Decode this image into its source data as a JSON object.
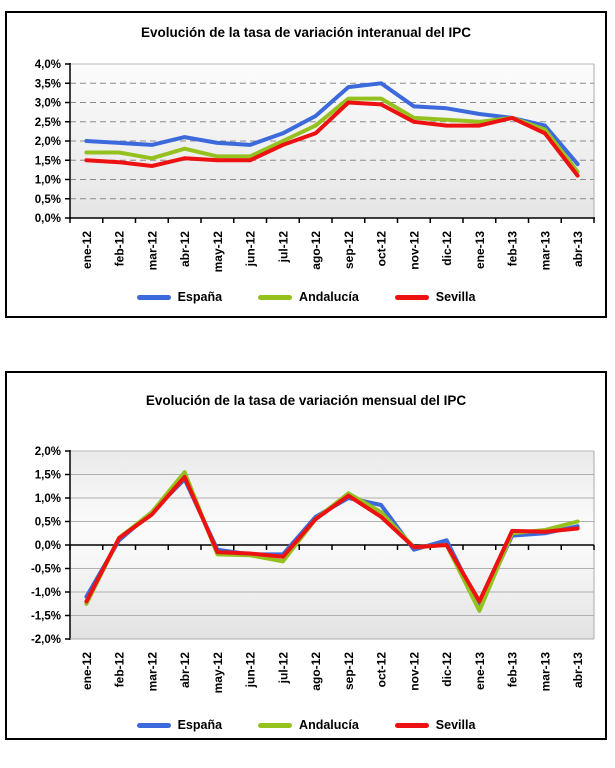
{
  "page": {
    "background": "#FFFFFF"
  },
  "chart_data": [
    {
      "type": "line",
      "title": "Evolución de la tasa de variación interanual del IPC",
      "categories": [
        "ene-12",
        "feb-12",
        "mar-12",
        "abr-12",
        "may-12",
        "jun-12",
        "jul-12",
        "ago-12",
        "sep-12",
        "oct-12",
        "nov-12",
        "dic-12",
        "ene-13",
        "feb-13",
        "mar-13",
        "abr-13"
      ],
      "series": [
        {
          "name": "España",
          "color": "#3C69DC",
          "values": [
            2.0,
            1.95,
            1.9,
            2.1,
            1.95,
            1.9,
            2.2,
            2.65,
            3.4,
            3.5,
            2.9,
            2.85,
            2.7,
            2.6,
            2.4,
            1.4
          ]
        },
        {
          "name": "Andalucía",
          "color": "#95C11F",
          "values": [
            1.7,
            1.7,
            1.55,
            1.8,
            1.6,
            1.6,
            2.0,
            2.4,
            3.1,
            3.1,
            2.6,
            2.55,
            2.5,
            2.6,
            2.3,
            1.2
          ]
        },
        {
          "name": "Sevilla",
          "color": "#EE1111",
          "values": [
            1.5,
            1.45,
            1.35,
            1.55,
            1.5,
            1.5,
            1.9,
            2.2,
            3.0,
            2.95,
            2.5,
            2.4,
            2.4,
            2.6,
            2.2,
            1.1
          ]
        }
      ],
      "ylim": [
        0,
        4
      ],
      "ytick_step": 0.5,
      "ytick_labels": [
        "4,0%",
        "3,5%",
        "3,0%",
        "2,5%",
        "2,0%",
        "1,5%",
        "1,0%",
        "0,5%",
        "0,0%"
      ],
      "gridline_style": "dashed",
      "zero_axis": false,
      "legend_position": "bottom"
    },
    {
      "type": "line",
      "title": "Evolución de la tasa de variación mensual del IPC",
      "categories": [
        "ene-12",
        "feb-12",
        "mar-12",
        "abr-12",
        "may-12",
        "jun-12",
        "jul-12",
        "ago-12",
        "sep-12",
        "oct-12",
        "nov-12",
        "dic-12",
        "ene-13",
        "feb-13",
        "mar-13",
        "abr-13"
      ],
      "series": [
        {
          "name": "España",
          "color": "#3C69DC",
          "values": [
            -1.1,
            0.1,
            0.7,
            1.4,
            -0.1,
            -0.2,
            -0.2,
            0.6,
            1.0,
            0.85,
            -0.1,
            0.1,
            -1.3,
            0.2,
            0.25,
            0.4
          ]
        },
        {
          "name": "Andalucía",
          "color": "#95C11F",
          "values": [
            -1.25,
            0.15,
            0.7,
            1.55,
            -0.2,
            -0.22,
            -0.35,
            0.55,
            1.1,
            0.7,
            -0.05,
            0.0,
            -1.4,
            0.25,
            0.32,
            0.5
          ]
        },
        {
          "name": "Sevilla",
          "color": "#EE1111",
          "values": [
            -1.2,
            0.15,
            0.65,
            1.45,
            -0.15,
            -0.18,
            -0.25,
            0.55,
            1.05,
            0.6,
            -0.05,
            0.0,
            -1.2,
            0.3,
            0.28,
            0.35
          ]
        }
      ],
      "ylim": [
        -2,
        2
      ],
      "ytick_step": 0.5,
      "ytick_labels": [
        "2,0%",
        "1,5%",
        "1,0%",
        "0,5%",
        "0,0%",
        "-0,5%",
        "-1,0%",
        "-1,5%",
        "-2,0%"
      ],
      "gridline_style": "solid",
      "zero_axis": true,
      "legend_position": "bottom"
    }
  ]
}
